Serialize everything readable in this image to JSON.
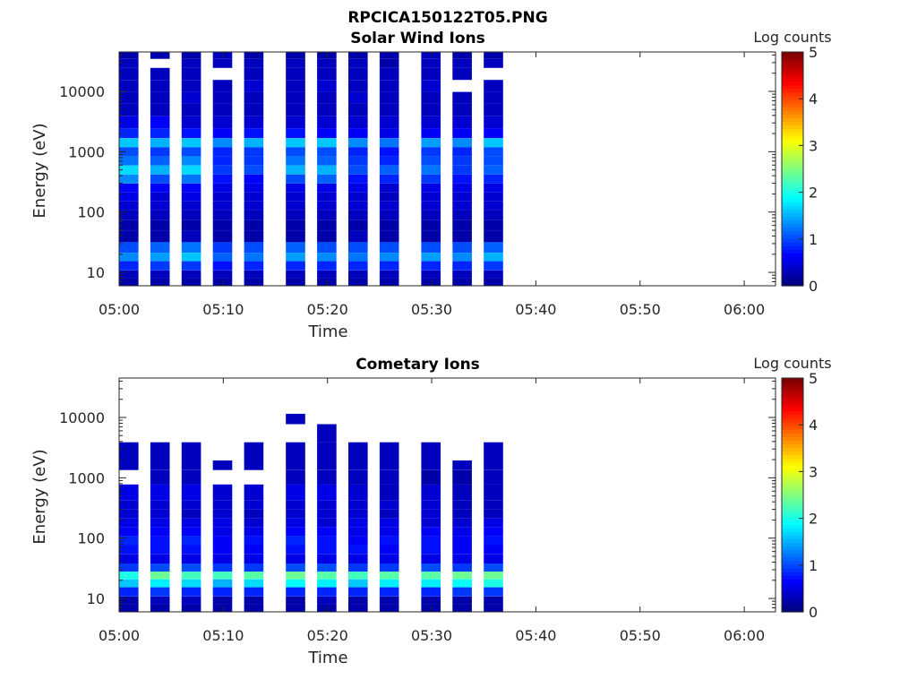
{
  "figure_title": "RPCICA150122T05.PNG",
  "chart_data": [
    {
      "type": "heatmap",
      "title": "Solar Wind Ions",
      "xlabel": "Time",
      "ylabel": "Energy (eV)",
      "yscale": "log",
      "ylim": [
        6,
        45000
      ],
      "xlim": [
        "05:00",
        "06:03"
      ],
      "x_ticks": [
        "05:00",
        "05:10",
        "05:20",
        "05:30",
        "05:40",
        "05:50",
        "06:00"
      ],
      "y_ticks": [
        "10",
        "100",
        "1000",
        "10000"
      ],
      "colorbar": {
        "label": "Log counts",
        "min": 0,
        "max": 5,
        "ticks": [
          "0",
          "1",
          "2",
          "3",
          "4",
          "5"
        ],
        "colormap": "jet"
      },
      "grid": false,
      "time_columns": [
        "05:00",
        "05:03",
        "05:06",
        "05:09",
        "05:12",
        "05:16",
        "05:19",
        "05:22",
        "05:25",
        "05:29",
        "05:32",
        "05:35"
      ],
      "energy_bands_eV": [
        {
          "energy": 40000,
          "levels": [
            0.2,
            0.2,
            0.2,
            0.3,
            0.2,
            0.2,
            0.2,
            0.2,
            0.2,
            0.3,
            0.2,
            0.2
          ]
        },
        {
          "energy": 30000,
          "levels": [
            0.3,
            0,
            0.3,
            0.3,
            0.3,
            0.3,
            0.3,
            0.3,
            0.2,
            0.3,
            0.3,
            0.3
          ]
        },
        {
          "energy": 20000,
          "levels": [
            0.3,
            0.3,
            0.3,
            0,
            0.3,
            0.3,
            0.3,
            0.3,
            0.3,
            0.3,
            0.3,
            0
          ]
        },
        {
          "energy": 12000,
          "levels": [
            0.3,
            0.3,
            0.3,
            0.3,
            0.4,
            0.3,
            0.4,
            0.3,
            0.3,
            0.4,
            0,
            0.3
          ]
        },
        {
          "energy": 8000,
          "levels": [
            0.3,
            0.3,
            0.4,
            0.3,
            0.3,
            0.3,
            0.3,
            0.4,
            0.3,
            0.3,
            0.3,
            0.3
          ]
        },
        {
          "energy": 5000,
          "levels": [
            0.3,
            0.3,
            0.3,
            0.3,
            0.3,
            0.3,
            0.3,
            0.3,
            0.3,
            0.3,
            0.3,
            0.3
          ]
        },
        {
          "energy": 3000,
          "levels": [
            0.5,
            0.6,
            0.4,
            0.4,
            0.4,
            0.4,
            0.4,
            0.4,
            0.4,
            0.4,
            0.4,
            0.4
          ]
        },
        {
          "energy": 2000,
          "levels": [
            0.8,
            0.8,
            0.7,
            0.6,
            0.7,
            0.7,
            0.6,
            0.6,
            0.5,
            0.6,
            0.6,
            0.6
          ]
        },
        {
          "energy": 1400,
          "levels": [
            1.6,
            1.5,
            1.6,
            1.3,
            1.5,
            1.6,
            1.6,
            1.3,
            1.2,
            1.4,
            1.3,
            1.6
          ]
        },
        {
          "energy": 1000,
          "levels": [
            1.0,
            0.9,
            1.0,
            0.8,
            0.9,
            1.0,
            1.0,
            0.8,
            0.7,
            0.9,
            0.8,
            1.0
          ]
        },
        {
          "energy": 700,
          "levels": [
            1.2,
            1.1,
            1.3,
            0.8,
            0.9,
            1.2,
            1.1,
            0.9,
            0.8,
            1.0,
            0.9,
            1.0
          ]
        },
        {
          "energy": 500,
          "levels": [
            1.7,
            1.5,
            1.7,
            0.9,
            1.0,
            1.5,
            1.5,
            1.0,
            1.1,
            1.2,
            0.9,
            1.1
          ]
        },
        {
          "energy": 350,
          "levels": [
            1.3,
            1.0,
            1.2,
            0.7,
            0.6,
            1.0,
            1.1,
            0.7,
            0.8,
            0.9,
            0.7,
            0.8
          ]
        },
        {
          "energy": 250,
          "levels": [
            0.6,
            0.6,
            0.6,
            0.5,
            0.5,
            0.5,
            0.5,
            0.5,
            0.4,
            0.5,
            0.5,
            0.5
          ]
        },
        {
          "energy": 180,
          "levels": [
            0.5,
            0.4,
            0.5,
            0.4,
            0.4,
            0.4,
            0.4,
            0.4,
            0.3,
            0.4,
            0.4,
            0.4
          ]
        },
        {
          "energy": 130,
          "levels": [
            0.4,
            0.4,
            0.4,
            0.4,
            0.4,
            0.4,
            0.4,
            0.4,
            0.4,
            0.4,
            0.4,
            0.4
          ]
        },
        {
          "energy": 90,
          "levels": [
            0.3,
            0.3,
            0.3,
            0.3,
            0.3,
            0.3,
            0.3,
            0.3,
            0.3,
            0.3,
            0.3,
            0.3
          ]
        },
        {
          "energy": 60,
          "levels": [
            0.2,
            0.2,
            0.2,
            0.2,
            0.2,
            0.2,
            0.2,
            0.2,
            0.2,
            0.2,
            0.2,
            0.2
          ]
        },
        {
          "energy": 40,
          "levels": [
            0.2,
            0.2,
            0.3,
            0.2,
            0.2,
            0.2,
            0.2,
            0.3,
            0.2,
            0.2,
            0.2,
            0.2
          ]
        },
        {
          "energy": 25,
          "levels": [
            1.0,
            1.1,
            1.2,
            0.9,
            1.0,
            1.1,
            1.0,
            1.0,
            1.0,
            1.0,
            1.0,
            1.1
          ]
        },
        {
          "energy": 18,
          "levels": [
            1.3,
            1.4,
            1.6,
            1.1,
            1.2,
            1.4,
            1.3,
            1.2,
            1.3,
            1.4,
            1.3,
            1.5
          ]
        },
        {
          "energy": 13,
          "levels": [
            0.8,
            0.9,
            0.9,
            0.7,
            0.8,
            0.8,
            0.8,
            0.8,
            0.8,
            0.8,
            0.8,
            0.9
          ]
        },
        {
          "energy": 9,
          "levels": [
            0.3,
            0.3,
            0.3,
            0.3,
            0.3,
            0.3,
            0.3,
            0.3,
            0.3,
            0.3,
            0.3,
            0.3
          ]
        },
        {
          "energy": 7,
          "levels": [
            0.2,
            0.2,
            0.2,
            0.2,
            0.2,
            0.2,
            0.2,
            0.2,
            0.2,
            0.2,
            0.2,
            0.2
          ]
        }
      ]
    },
    {
      "type": "heatmap",
      "title": "Cometary Ions",
      "xlabel": "Time",
      "ylabel": "Energy (eV)",
      "yscale": "log",
      "ylim": [
        6,
        45000
      ],
      "xlim": [
        "05:00",
        "06:03"
      ],
      "x_ticks": [
        "05:00",
        "05:10",
        "05:20",
        "05:30",
        "05:40",
        "05:50",
        "06:00"
      ],
      "y_ticks": [
        "10",
        "100",
        "1000",
        "10000"
      ],
      "colorbar": {
        "label": "Log counts",
        "min": 0,
        "max": 5,
        "ticks": [
          "0",
          "1",
          "2",
          "3",
          "4",
          "5"
        ],
        "colormap": "jet"
      },
      "grid": false,
      "time_columns": [
        "05:00",
        "05:03",
        "05:06",
        "05:09",
        "05:12",
        "05:16",
        "05:19",
        "05:22",
        "05:25",
        "05:29",
        "05:32",
        "05:35"
      ],
      "energy_bands_eV": [
        {
          "energy": 10000,
          "levels": [
            null,
            null,
            null,
            null,
            null,
            0.3,
            null,
            null,
            null,
            null,
            null,
            null
          ]
        },
        {
          "energy": 6000,
          "levels": [
            null,
            null,
            null,
            null,
            null,
            null,
            0.3,
            null,
            null,
            null,
            null,
            null
          ]
        },
        {
          "energy": 2500,
          "levels": [
            0.3,
            0.3,
            0.3,
            null,
            0.3,
            0.3,
            0.3,
            0.3,
            0.3,
            0.3,
            null,
            0.3
          ]
        },
        {
          "energy": 1500,
          "levels": [
            0.3,
            0.3,
            0.3,
            0.3,
            0.3,
            0.3,
            0.3,
            0.3,
            0.3,
            0.3,
            0.3,
            0.3
          ]
        },
        {
          "energy": 1200,
          "levels": [
            null,
            0.3,
            0.3,
            null,
            null,
            0.3,
            0.3,
            0.3,
            0.3,
            0.2,
            0.2,
            0.3
          ]
        },
        {
          "energy": 500,
          "levels": [
            0.5,
            0.5,
            0.5,
            0.4,
            0.4,
            0.5,
            0.5,
            0.4,
            0.3,
            0.4,
            0.3,
            0.3
          ]
        },
        {
          "energy": 350,
          "levels": [
            0.4,
            0.4,
            0.4,
            0.4,
            0.4,
            0.4,
            0.4,
            0.4,
            0.4,
            0.4,
            0.3,
            0.3
          ]
        },
        {
          "energy": 250,
          "levels": [
            0.4,
            0.4,
            0.3,
            0.4,
            0.3,
            0.4,
            0.4,
            0.4,
            0.3,
            0.4,
            0.3,
            0.3
          ]
        },
        {
          "energy": 180,
          "levels": [
            0.5,
            0.5,
            0.5,
            0.5,
            0.4,
            0.5,
            0.4,
            0.5,
            0.5,
            0.4,
            0.4,
            0.5
          ]
        },
        {
          "energy": 130,
          "levels": [
            0.6,
            0.6,
            0.6,
            0.5,
            0.5,
            0.6,
            0.6,
            0.5,
            0.5,
            0.6,
            0.5,
            0.6
          ]
        },
        {
          "energy": 90,
          "levels": [
            0.8,
            0.7,
            0.8,
            0.6,
            0.7,
            0.8,
            0.7,
            0.6,
            0.7,
            0.7,
            0.6,
            0.7
          ]
        },
        {
          "energy": 65,
          "levels": [
            0.7,
            0.7,
            0.7,
            0.6,
            0.6,
            0.7,
            0.7,
            0.7,
            0.6,
            0.7,
            0.6,
            0.6
          ]
        },
        {
          "energy": 45,
          "levels": [
            0.5,
            0.5,
            0.5,
            0.5,
            0.5,
            0.5,
            0.5,
            0.5,
            0.5,
            0.5,
            0.5,
            0.5
          ]
        },
        {
          "energy": 32,
          "levels": [
            0.9,
            1.0,
            1.0,
            0.9,
            0.9,
            1.0,
            1.0,
            0.9,
            0.9,
            1.0,
            0.9,
            1.0
          ]
        },
        {
          "energy": 24,
          "levels": [
            2.0,
            2.4,
            2.2,
            2.2,
            2.3,
            2.4,
            2.3,
            2.2,
            2.3,
            2.3,
            2.4,
            2.4
          ]
        },
        {
          "energy": 18,
          "levels": [
            1.6,
            1.8,
            1.7,
            1.5,
            1.7,
            1.9,
            1.8,
            1.6,
            1.8,
            1.8,
            1.9,
            2.0
          ]
        },
        {
          "energy": 13,
          "levels": [
            0.8,
            0.9,
            0.8,
            0.8,
            0.8,
            0.8,
            0.8,
            0.8,
            0.8,
            0.8,
            0.9,
            0.9
          ]
        },
        {
          "energy": 9,
          "levels": [
            0.2,
            0.3,
            0.3,
            0.2,
            0.2,
            0.2,
            0.3,
            0.2,
            0.2,
            0.2,
            0.2,
            0.2
          ]
        },
        {
          "energy": 7,
          "levels": [
            0.2,
            0.2,
            0.2,
            0.2,
            0.2,
            0.2,
            0.2,
            0.2,
            0.2,
            0.2,
            0.2,
            0.2
          ]
        }
      ]
    }
  ]
}
